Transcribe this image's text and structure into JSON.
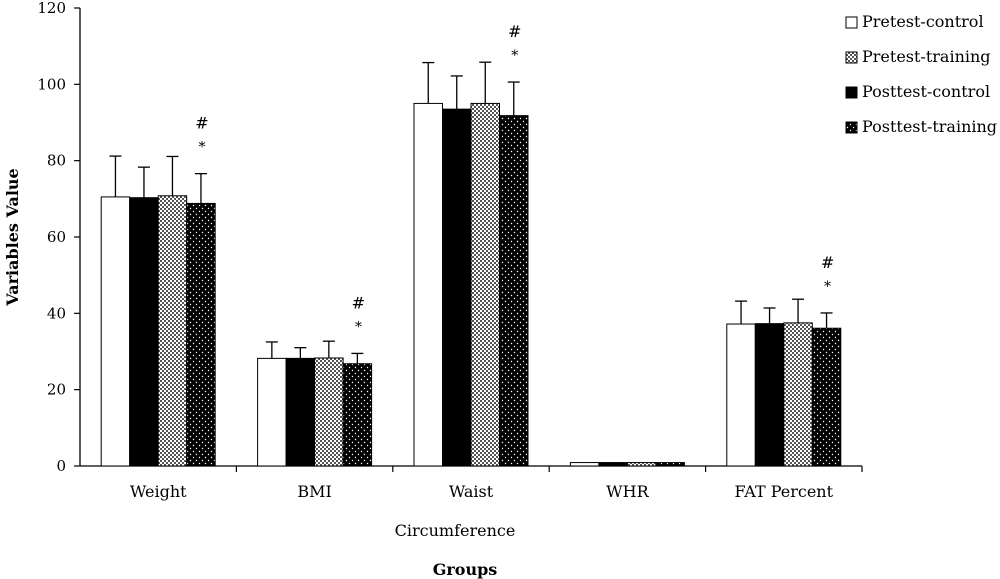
{
  "chart_data": {
    "type": "bar",
    "xlabel": "Groups",
    "subtitle": "Circumference",
    "ylabel": "Variables Value",
    "ylim": [
      0,
      120
    ],
    "yticks": [
      0,
      20,
      40,
      60,
      80,
      100,
      120
    ],
    "categories": [
      "Weight",
      "BMI",
      "Waist",
      "WHR",
      "FAT Percent"
    ],
    "series": [
      {
        "name": "Pretest-control",
        "pattern": "white",
        "values": [
          70.5,
          28.2,
          95.0,
          0.9,
          37.2
        ],
        "errors": [
          10.7,
          4.3,
          10.7,
          0.05,
          6.0
        ]
      },
      {
        "name": "Posttest-control",
        "pattern": "solid-black",
        "values": [
          70.3,
          28.2,
          93.5,
          0.9,
          37.3
        ],
        "errors": [
          8.0,
          2.8,
          8.7,
          0.05,
          4.1
        ]
      },
      {
        "name": "Pretest-training",
        "pattern": "checker",
        "values": [
          70.8,
          28.3,
          95.0,
          0.9,
          37.5
        ],
        "errors": [
          10.3,
          4.4,
          10.8,
          0.05,
          6.2
        ]
      },
      {
        "name": "Posttest-training",
        "pattern": "dotted-black",
        "values": [
          68.8,
          26.8,
          91.8,
          0.9,
          36.1
        ],
        "errors": [
          7.8,
          2.7,
          8.8,
          0.05,
          4.0
        ]
      }
    ],
    "legend_order": [
      0,
      2,
      1,
      3
    ],
    "legend_position": "top-right",
    "annotations": [
      {
        "category": 0,
        "series": 3,
        "star": "*",
        "hash": "#"
      },
      {
        "category": 1,
        "series": 3,
        "star": "*",
        "hash": "#"
      },
      {
        "category": 2,
        "series": 3,
        "star": "*",
        "hash": "#"
      },
      {
        "category": 4,
        "series": 3,
        "star": "*",
        "hash": "#"
      }
    ],
    "grid": false
  }
}
